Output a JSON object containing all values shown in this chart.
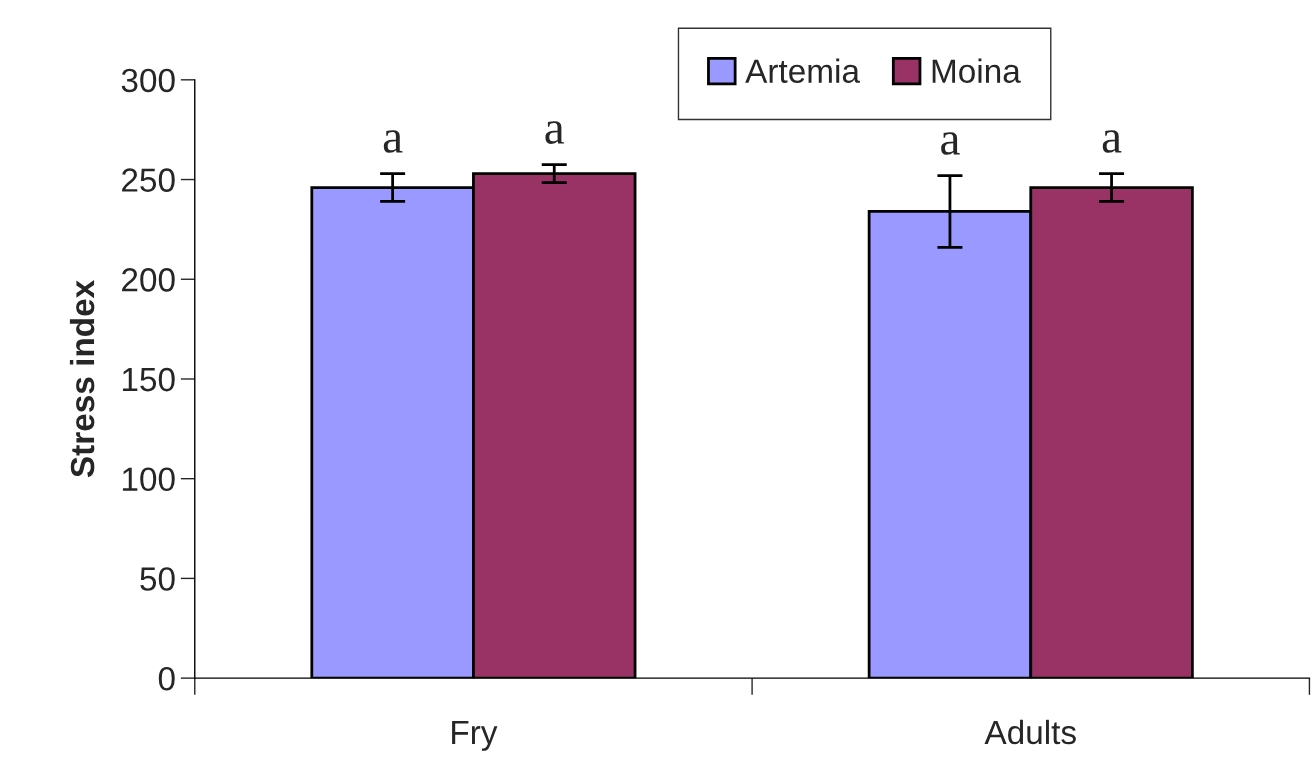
{
  "chart_data": {
    "type": "bar",
    "ylabel": "Stress index",
    "categories": [
      "Fry",
      "Adults"
    ],
    "series": [
      {
        "name": "Artemia",
        "color": "#9999ff",
        "values": [
          246,
          234
        ],
        "errors": [
          7,
          18
        ]
      },
      {
        "name": "Moina",
        "color": "#993366",
        "values": [
          253,
          246
        ],
        "errors": [
          4.5,
          7
        ]
      }
    ],
    "annotations": [
      "a",
      "a",
      "a",
      "a"
    ],
    "ylim": [
      0,
      300
    ],
    "yticks": [
      0,
      50,
      100,
      150,
      200,
      250,
      300
    ],
    "grid": false,
    "legend": "top"
  }
}
